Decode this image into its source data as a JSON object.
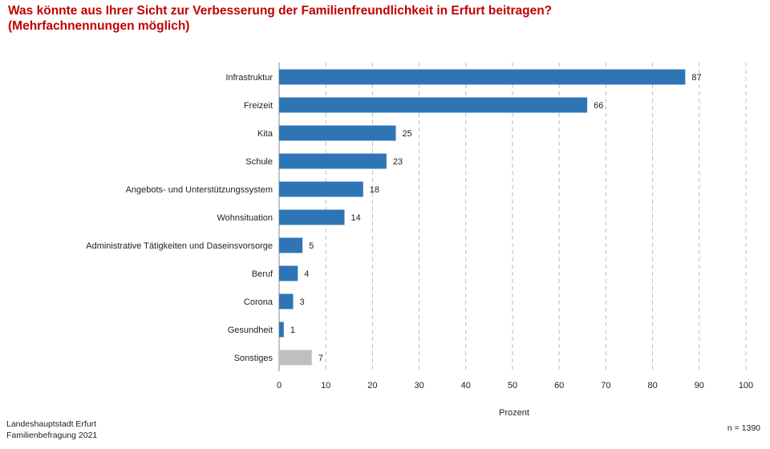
{
  "title_line1": "Was könnte aus Ihrer Sicht zur Verbesserung der Familienfreundlichkeit in Erfurt beitragen?",
  "title_line2": "(Mehrfachnennungen möglich)",
  "footer": {
    "source_line1": "Landeshauptstadt Erfurt",
    "source_line2": "Familienbefragung 2021",
    "sample_size": "n = 1390"
  },
  "colors": {
    "bar": "#2e75b6",
    "bar_other": "#bfbfbf",
    "title": "#c00000",
    "grid": "#bbbbbb"
  },
  "chart_data": {
    "type": "bar",
    "orientation": "horizontal",
    "categories": [
      "Infrastruktur",
      "Freizeit",
      "Kita",
      "Schule",
      "Angebots- und Unterstützungssystem",
      "Wohnsituation",
      "Administrative Tätigkeiten und Daseinsvorsorge",
      "Beruf",
      "Corona",
      "Gesundheit",
      "Sonstiges"
    ],
    "values": [
      87,
      66,
      25,
      23,
      18,
      14,
      5,
      4,
      3,
      1,
      7
    ],
    "data_labels": [
      "87",
      "66",
      "25",
      "23",
      "18",
      "14",
      "5",
      "4",
      "3",
      "1",
      "7"
    ],
    "xlabel": "Prozent",
    "ylabel": "",
    "xlim": [
      0,
      100
    ],
    "xticks": [
      0,
      10,
      20,
      30,
      40,
      50,
      60,
      70,
      80,
      90,
      100
    ],
    "grid": "vertical dashed",
    "legend": "none"
  }
}
